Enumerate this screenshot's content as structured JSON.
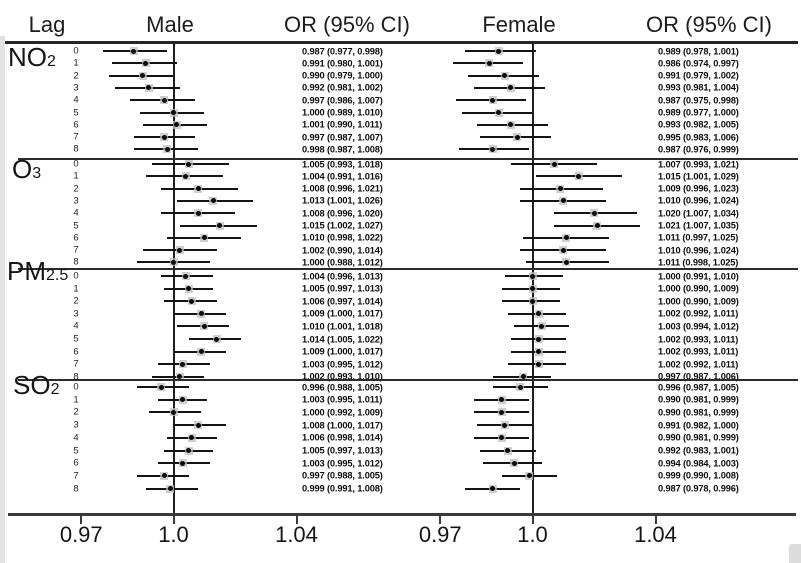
{
  "figure": {
    "columns": [
      {
        "label": "Lag"
      },
      {
        "label": "Male"
      },
      {
        "label": "OR (95% CI)"
      },
      {
        "label": "Female"
      },
      {
        "label": "OR (95% CI)"
      }
    ]
  },
  "chart_data": {
    "type": "forest",
    "title": "",
    "panels": [
      "Male",
      "Female"
    ],
    "or_axis": {
      "ticks": [
        0.97,
        1.0,
        1.04
      ],
      "tick_labels": [
        "0.97",
        "1.0",
        "1.04"
      ],
      "reference_line": 1.0,
      "grid": false
    },
    "lags": [
      0,
      1,
      2,
      3,
      4,
      5,
      6,
      7,
      8
    ],
    "value_format": "OR (lower, upper)",
    "groups": [
      {
        "name": "NO2",
        "label": {
          "main": "NO",
          "sub": "2"
        },
        "male": [
          [
            0.987,
            0.977,
            0.998
          ],
          [
            0.991,
            0.98,
            1.001
          ],
          [
            0.99,
            0.979,
            1.0
          ],
          [
            0.992,
            0.981,
            1.002
          ],
          [
            0.997,
            0.986,
            1.007
          ],
          [
            1.0,
            0.989,
            1.01
          ],
          [
            1.001,
            0.99,
            1.011
          ],
          [
            0.997,
            0.987,
            1.007
          ],
          [
            0.998,
            0.987,
            1.008
          ]
        ],
        "female": [
          [
            0.989,
            0.978,
            1.001
          ],
          [
            0.986,
            0.974,
            0.997
          ],
          [
            0.991,
            0.979,
            1.002
          ],
          [
            0.993,
            0.981,
            1.004
          ],
          [
            0.987,
            0.975,
            0.998
          ],
          [
            0.989,
            0.977,
            1.0
          ],
          [
            0.993,
            0.982,
            1.005
          ],
          [
            0.995,
            0.983,
            1.006
          ],
          [
            0.987,
            0.976,
            0.999
          ]
        ]
      },
      {
        "name": "O3",
        "label": {
          "main": "O",
          "sub": "3"
        },
        "male": [
          [
            1.005,
            0.993,
            1.018
          ],
          [
            1.004,
            0.991,
            1.016
          ],
          [
            1.008,
            0.996,
            1.021
          ],
          [
            1.013,
            1.001,
            1.026
          ],
          [
            1.008,
            0.996,
            1.02
          ],
          [
            1.015,
            1.002,
            1.027
          ],
          [
            1.01,
            0.998,
            1.022
          ],
          [
            1.002,
            0.99,
            1.014
          ],
          [
            1.0,
            0.988,
            1.012
          ]
        ],
        "female": [
          [
            1.007,
            0.993,
            1.021
          ],
          [
            1.015,
            1.001,
            1.029
          ],
          [
            1.009,
            0.996,
            1.023
          ],
          [
            1.01,
            0.996,
            1.024
          ],
          [
            1.02,
            1.007,
            1.034
          ],
          [
            1.021,
            1.007,
            1.035
          ],
          [
            1.011,
            0.997,
            1.025
          ],
          [
            1.01,
            0.996,
            1.024
          ],
          [
            1.011,
            0.998,
            1.025
          ]
        ]
      },
      {
        "name": "PM2.5",
        "label": {
          "main": "PM",
          "sub": "2.5"
        },
        "male": [
          [
            1.004,
            0.996,
            1.013
          ],
          [
            1.005,
            0.997,
            1.013
          ],
          [
            1.006,
            0.997,
            1.014
          ],
          [
            1.009,
            1.0,
            1.017
          ],
          [
            1.01,
            1.001,
            1.018
          ],
          [
            1.014,
            1.005,
            1.022
          ],
          [
            1.009,
            1.0,
            1.017
          ],
          [
            1.003,
            0.995,
            1.012
          ],
          [
            1.002,
            0.993,
            1.01
          ]
        ],
        "female": [
          [
            1.0,
            0.991,
            1.01
          ],
          [
            1.0,
            0.99,
            1.009
          ],
          [
            1.0,
            0.99,
            1.009
          ],
          [
            1.002,
            0.992,
            1.011
          ],
          [
            1.003,
            0.994,
            1.012
          ],
          [
            1.002,
            0.993,
            1.011
          ],
          [
            1.002,
            0.993,
            1.011
          ],
          [
            1.002,
            0.992,
            1.011
          ],
          [
            0.997,
            0.987,
            1.006
          ]
        ]
      },
      {
        "name": "SO2",
        "label": {
          "main": "SO",
          "sub": "2"
        },
        "male": [
          [
            0.996,
            0.988,
            1.005
          ],
          [
            1.003,
            0.995,
            1.011
          ],
          [
            1.0,
            0.992,
            1.009
          ],
          [
            1.008,
            1.0,
            1.017
          ],
          [
            1.006,
            0.998,
            1.014
          ],
          [
            1.005,
            0.997,
            1.013
          ],
          [
            1.003,
            0.995,
            1.012
          ],
          [
            0.997,
            0.988,
            1.005
          ],
          [
            0.999,
            0.991,
            1.008
          ]
        ],
        "female": [
          [
            0.996,
            0.987,
            1.005
          ],
          [
            0.99,
            0.981,
            0.999
          ],
          [
            0.99,
            0.981,
            0.999
          ],
          [
            0.991,
            0.982,
            1.0
          ],
          [
            0.99,
            0.981,
            0.999
          ],
          [
            0.992,
            0.983,
            1.001
          ],
          [
            0.994,
            0.984,
            1.003
          ],
          [
            0.999,
            0.99,
            1.008
          ],
          [
            0.987,
            0.978,
            0.996
          ]
        ]
      }
    ]
  }
}
